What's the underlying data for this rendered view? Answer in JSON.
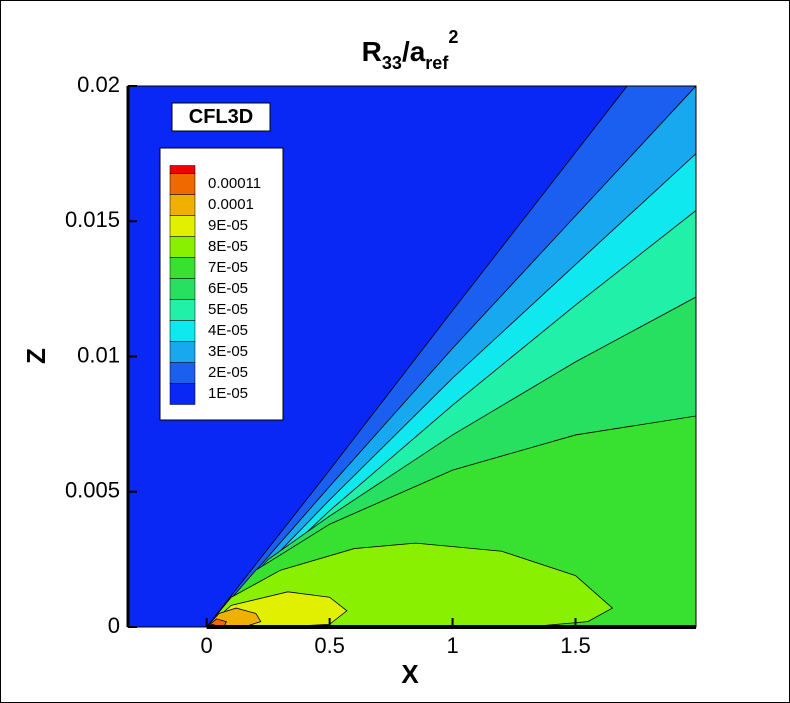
{
  "chart_data": {
    "type": "contour",
    "title": [
      "R",
      "33",
      "/a",
      "ref",
      "2"
    ],
    "annotation": "CFL3D",
    "xlabel": "X",
    "ylabel": "Z",
    "xlim": [
      -0.32,
      1.99
    ],
    "ylim": [
      0,
      0.02
    ],
    "xticks": [
      0,
      0.5,
      1,
      1.5
    ],
    "yticks": [
      0,
      0.005,
      0.01,
      0.015,
      0.02
    ],
    "levels": [
      1e-05,
      2e-05,
      3e-05,
      4e-05,
      5e-05,
      6e-05,
      7e-05,
      8e-05,
      9e-05,
      0.0001,
      0.00011
    ],
    "level_labels": [
      "1E-05",
      "2E-05",
      "3E-05",
      "4E-05",
      "5E-05",
      "6E-05",
      "7E-05",
      "8E-05",
      "9E-05",
      "0.0001",
      "0.00011"
    ],
    "colors": [
      "#0a28f5",
      "#1a5ff0",
      "#18a8f0",
      "#10e8f0",
      "#20f0a8",
      "#28e060",
      "#38e030",
      "#88f000",
      "#e0f000",
      "#f0b000",
      "#f06800",
      "#f00000"
    ],
    "contours": [
      {
        "x": [
          0,
          0.5,
          1.0,
          1.71
        ],
        "z": [
          0,
          0.0058,
          0.0117,
          0.02
        ]
      },
      {
        "x": [
          0,
          0.5,
          1.0,
          1.5,
          1.99
        ],
        "z": [
          0,
          0.0052,
          0.0103,
          0.0152,
          0.02
        ]
      },
      {
        "x": [
          0,
          0.5,
          1.0,
          1.5,
          1.99
        ],
        "z": [
          0,
          0.0047,
          0.0092,
          0.0134,
          0.0175
        ]
      },
      {
        "x": [
          0,
          0.5,
          1.0,
          1.5,
          1.99
        ],
        "z": [
          0,
          0.0043,
          0.0082,
          0.0119,
          0.0154
        ]
      },
      {
        "x": [
          0,
          0.25,
          0.5,
          1.0,
          1.5,
          1.99
        ],
        "z": [
          0,
          0.0025,
          0.0041,
          0.0071,
          0.0098,
          0.0122
        ]
      },
      {
        "x": [
          0,
          0.2,
          0.5,
          1.0,
          1.5,
          1.99
        ],
        "z": [
          0,
          0.0021,
          0.0038,
          0.0058,
          0.0071,
          0.0078
        ]
      },
      {
        "x": [
          0,
          0.1,
          0.3,
          0.6,
          0.85,
          1.2,
          1.5,
          1.65,
          1.55,
          1.3
        ],
        "z": [
          0,
          0.0011,
          0.0021,
          0.0029,
          0.0031,
          0.0028,
          0.0019,
          0.0007,
          0.0002,
          0
        ]
      },
      {
        "x": [
          0,
          0.1,
          0.33,
          0.5,
          0.57,
          0.5,
          0.3
        ],
        "z": [
          0,
          0.0008,
          0.0013,
          0.0011,
          0.0006,
          0.0001,
          0
        ]
      },
      {
        "x": [
          0,
          0.05,
          0.12,
          0.2,
          0.22,
          0.15
        ],
        "z": [
          0,
          0.0005,
          0.0007,
          0.0005,
          0.0002,
          0
        ]
      },
      {
        "x": [
          0,
          0.04,
          0.08,
          0.07
        ],
        "z": [
          0,
          0.0003,
          0.0002,
          0
        ]
      },
      {
        "x": [
          0.01,
          0.02,
          0.04,
          0.035
        ],
        "z": [
          0,
          0.0001,
          5e-05,
          0
        ]
      }
    ]
  }
}
